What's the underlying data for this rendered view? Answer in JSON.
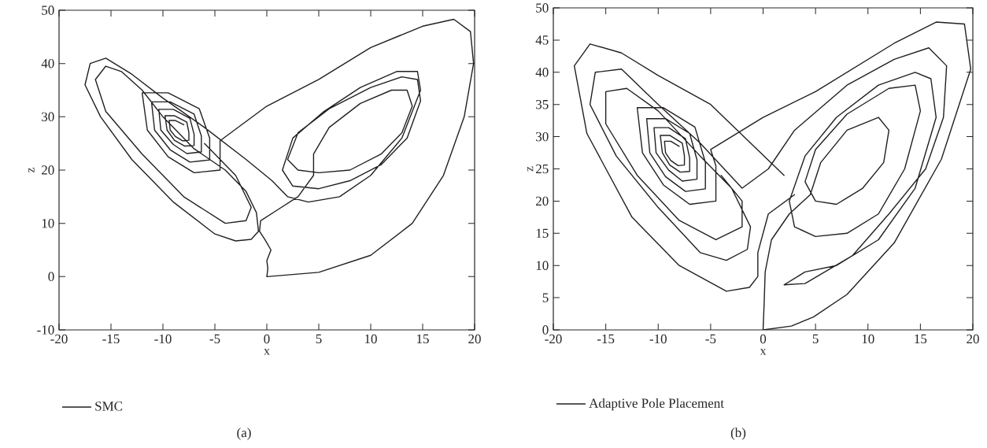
{
  "chart_data": [
    {
      "type": "line",
      "xlabel": "x",
      "ylabel": "z",
      "xlim": [
        -20,
        20
      ],
      "ylim": [
        -10,
        50
      ],
      "xticks": [
        -20,
        -15,
        -10,
        -5,
        0,
        5,
        10,
        15,
        20
      ],
      "yticks": [
        -10,
        0,
        10,
        20,
        30,
        40,
        50
      ],
      "legend": "bottom left",
      "annotations": [
        "(a)"
      ],
      "series": [
        {
          "name": "SMC",
          "color": "#231f20",
          "x": [
            0,
            5,
            10,
            14,
            17,
            19,
            19.9,
            19.6,
            18,
            15,
            10,
            5,
            0,
            -4.5,
            -4.5,
            -7,
            -9.5,
            -11.5,
            -12,
            -9.5,
            -6.5,
            -5.5,
            -5.5,
            -7.4,
            -9.3,
            -10.8,
            -11.1,
            -9.3,
            -7,
            -6.3,
            -6.3,
            -7.7,
            -9,
            -10.2,
            -10.4,
            -9,
            -7.4,
            -7,
            -7,
            -7.9,
            -8.9,
            -9.6,
            -9.8,
            -8.9,
            -7.7,
            -7.5,
            -7.5,
            -8.1,
            -8.8,
            -9.3,
            -9.4,
            -8.8,
            -8,
            null,
            0,
            0.1,
            0,
            0.4,
            -0.2,
            -0.7,
            -0.6,
            1,
            3,
            4.5,
            4.5,
            6,
            9,
            12,
            13.5,
            14,
            13,
            11,
            8,
            5,
            3,
            2,
            3,
            6,
            10,
            13,
            14.5,
            14.8,
            13.5,
            11,
            8,
            5,
            2.5,
            1.5,
            2.5,
            5.5,
            9,
            12.5,
            14.5,
            14.8,
            13,
            10,
            7,
            4,
            2,
            0.5,
            -2,
            -6,
            -10,
            -13,
            -15.5,
            -17,
            -17.5,
            -16,
            -13,
            -9,
            -5,
            -3,
            -1.5,
            -0.8,
            -1,
            -2,
            -4,
            -7,
            -10,
            -12,
            -14,
            -15.5,
            -16.5,
            -15.5,
            -12,
            -8,
            -4,
            -2,
            -1.5,
            -3,
            -6
          ],
          "values": [
            0,
            0.8,
            4,
            10,
            19,
            30,
            40,
            46,
            48.3,
            47,
            43,
            37,
            32,
            25.5,
            20,
            19.5,
            22.5,
            27.5,
            34.5,
            34.5,
            31.5,
            26,
            21.9,
            21.5,
            23.8,
            27.5,
            32.8,
            32.8,
            30.5,
            26.4,
            23.4,
            23.1,
            24.8,
            27.5,
            31.4,
            31.4,
            29.7,
            26.7,
            24.6,
            24.5,
            25.6,
            27.5,
            30.2,
            30.2,
            29,
            27,
            25.6,
            25.5,
            26.3,
            27.5,
            29.3,
            29.3,
            28.5,
            null,
            0,
            1.5,
            3,
            5,
            7,
            8.5,
            10.5,
            12.5,
            15,
            19,
            23,
            28,
            32.5,
            35,
            35,
            32,
            27,
            23,
            20,
            19.5,
            20,
            22,
            27,
            31.5,
            35.5,
            37.5,
            37,
            33,
            26,
            21,
            18,
            16.5,
            17,
            20,
            26,
            31,
            35.5,
            38.5,
            38.5,
            35,
            26,
            19,
            15,
            14,
            15,
            18,
            22,
            28,
            33.5,
            38,
            41,
            40,
            36,
            30,
            22,
            14,
            8,
            6.7,
            7,
            8.5,
            12,
            16,
            20,
            24,
            30,
            35,
            38.5,
            39.5,
            37,
            31,
            23,
            15,
            10,
            10.5,
            13,
            19,
            25
          ]
        }
      ]
    },
    {
      "type": "line",
      "xlabel": "x",
      "ylabel": "z",
      "xlim": [
        -20,
        20
      ],
      "ylim": [
        0,
        50
      ],
      "xticks": [
        -20,
        -15,
        -10,
        -5,
        0,
        5,
        10,
        15,
        20
      ],
      "yticks": [
        0,
        5,
        10,
        15,
        20,
        25,
        30,
        35,
        40,
        45,
        50
      ],
      "legend": "bottom left",
      "annotations": [
        "(b)"
      ],
      "series": [
        {
          "name": "Adaptive Pole Placement",
          "color": "#231f20",
          "x": [
            0,
            2.7,
            4.8,
            8,
            12.5,
            17,
            19.8,
            19.2,
            16.5,
            12.5,
            5,
            0,
            -5,
            -4.5,
            -4.5,
            -7,
            -9.5,
            -11.5,
            -12,
            -9.5,
            -6.5,
            -5.5,
            -5.5,
            -7.4,
            -9.3,
            -10.8,
            -11.1,
            -9.3,
            -7,
            -6.3,
            -6.3,
            -7.7,
            -9,
            -10.2,
            -10.4,
            -9,
            -7.4,
            -7,
            -7,
            -7.9,
            -8.9,
            -9.6,
            -9.8,
            -8.9,
            -7.7,
            -7.5,
            -7.5,
            -8.1,
            -8.8,
            -9.3,
            -9.4,
            -8.8,
            -8,
            null,
            0,
            0.1,
            0.2,
            0.8,
            2.5,
            4.5,
            5.5,
            8,
            11,
            12,
            11.5,
            9.5,
            7,
            5,
            4,
            5,
            8,
            12,
            14.5,
            15,
            13.5,
            11,
            8,
            5,
            3,
            2.5,
            4,
            7,
            11,
            14.5,
            16,
            16.5,
            14.5,
            11,
            7,
            4,
            2,
            4,
            8.5,
            12,
            15.5,
            17.2,
            17.5,
            15.8,
            12.5,
            8,
            3,
            0.5,
            -2,
            -6,
            -10,
            -13.5,
            -16,
            -16.5,
            -14,
            -10,
            -6,
            -3.5,
            -1.5,
            -1.2,
            -3,
            -6,
            -10,
            -13,
            -15,
            -15,
            -12,
            -8,
            -4.5,
            -2,
            -2,
            -4,
            null,
            2,
            -5,
            -10,
            -13.5,
            -16.5,
            -18,
            -16.8,
            -12.5,
            -8,
            -3.5,
            -1.3,
            -0.5,
            -0.5,
            0.5,
            3
          ],
          "values": [
            0,
            0.6,
            2,
            5.5,
            13.5,
            26.5,
            40.5,
            47.5,
            47.8,
            44.5,
            37,
            33,
            28,
            25.5,
            20,
            19.5,
            22.5,
            27.5,
            34.5,
            34.5,
            31.5,
            26,
            21.9,
            21.5,
            23.8,
            27.5,
            32.8,
            32.8,
            30.5,
            26.4,
            23.4,
            23.1,
            24.8,
            27.5,
            31.4,
            31.4,
            29.7,
            26.7,
            24.6,
            24.5,
            25.6,
            27.5,
            30.2,
            30.2,
            29,
            27,
            25.6,
            25.5,
            26.3,
            27.5,
            29.3,
            29.3,
            28.5,
            null,
            0,
            4,
            9,
            14,
            18,
            21,
            26,
            31,
            33,
            31,
            26,
            22,
            19.5,
            20,
            23,
            28,
            33.5,
            37.5,
            38,
            34,
            25,
            18,
            15,
            14.5,
            16,
            20,
            27,
            33,
            38,
            40,
            39,
            33,
            22,
            14,
            10,
            9,
            7,
            7.2,
            11.5,
            18,
            25,
            33,
            41,
            43.8,
            42,
            38,
            31,
            25,
            22,
            29,
            35,
            40.5,
            40,
            35,
            27,
            19,
            12,
            10.8,
            12.5,
            16,
            22,
            27,
            34,
            37.5,
            37,
            32,
            24,
            17,
            14,
            16,
            20,
            24,
            null,
            24,
            35,
            39.5,
            43,
            44.4,
            41,
            30.5,
            17.5,
            10,
            6,
            6.6,
            8.3,
            12,
            18,
            21
          ]
        }
      ]
    }
  ]
}
